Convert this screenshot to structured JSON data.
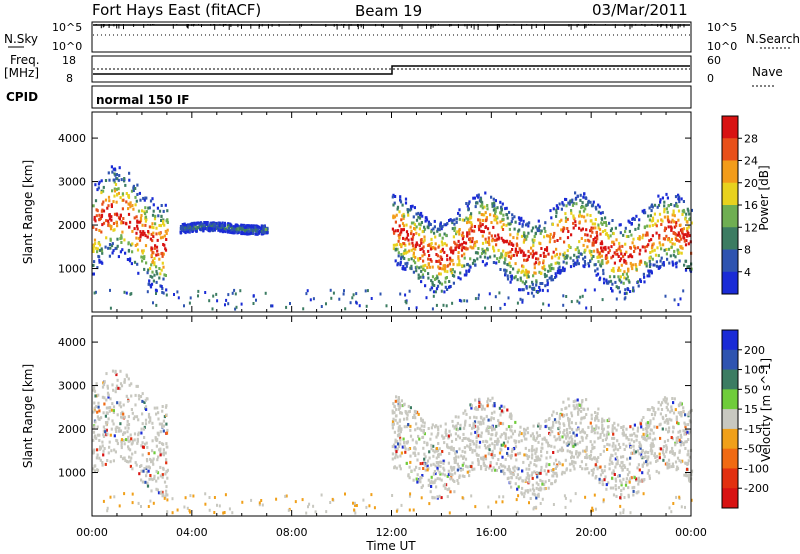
{
  "header": {
    "title": "Fort Hays East (fitACF)",
    "beam": "Beam 19",
    "date": "03/Mar/2011"
  },
  "aux_panels": {
    "nsky_label": "N.Sky",
    "nsky_ticks": [
      "10^5",
      "10^0"
    ],
    "nsearch_label": "N.Search",
    "nsearch_ticks": [
      "10^5",
      "10^0"
    ],
    "freq_label": "Freq.",
    "freq_unit": "[MHz]",
    "freq_ticks": [
      "18",
      "8"
    ],
    "nave_label": "Nave",
    "nave_ticks": [
      "60",
      "0"
    ],
    "cpid_label": "CPID",
    "cpid_value": "normal 150 IF"
  },
  "chart_data": [
    {
      "type": "heatmap",
      "parameter": "Power",
      "ylabel": "Slant Range [km]",
      "xlabel": "Time UT",
      "ylim": [
        0,
        4600
      ],
      "yticks": [
        1000,
        2000,
        3000,
        4000
      ],
      "xticks": [
        "00:00",
        "04:00",
        "08:00",
        "12:00",
        "16:00",
        "20:00",
        "00:00"
      ],
      "colorbar": {
        "label": "Power [dB]",
        "ticks": [
          "4",
          "8",
          "12",
          "16",
          "20",
          "24",
          "28"
        ],
        "colors": [
          "#1a2bd6",
          "#2f54b0",
          "#3c7c62",
          "#6fae52",
          "#e8d21e",
          "#f39c1a",
          "#e8501a",
          "#d81212"
        ]
      },
      "features": [
        {
          "time_start": "00:00",
          "time_end": "03:00",
          "range_low": 1300,
          "range_high": 3400,
          "peak_db": 28
        },
        {
          "time_start": "03:30",
          "time_end": "07:00",
          "range_low": 1900,
          "range_high": 2100,
          "peak_db": 8
        },
        {
          "time_start": "12:00",
          "time_end": "24:00",
          "range_low": 1100,
          "range_high": 2800,
          "peak_db": 28
        }
      ]
    },
    {
      "type": "heatmap",
      "parameter": "Velocity",
      "ylabel": "Slant Range [km]",
      "xlabel": "Time UT",
      "ylim": [
        0,
        4600
      ],
      "yticks": [
        1000,
        2000,
        3000,
        4000
      ],
      "xticks": [
        "00:00",
        "04:00",
        "08:00",
        "12:00",
        "16:00",
        "20:00",
        "00:00"
      ],
      "colorbar": {
        "label": "Velocity [m s^-1]",
        "ticks": [
          "200",
          "100",
          "50",
          "15",
          "-15",
          "-50",
          "-100",
          "-200"
        ],
        "colors": [
          "#1a2bd6",
          "#2f54b0",
          "#3c7c62",
          "#6fcc3a",
          "#c8c8c0",
          "#f0a01a",
          "#f06a12",
          "#e23010",
          "#d81212"
        ]
      },
      "features": [
        {
          "time_start": "00:00",
          "time_end": "03:00",
          "range_low": 1300,
          "range_high": 3400,
          "velocity": "ground scatter"
        },
        {
          "time_start": "12:00",
          "time_end": "24:00",
          "range_low": 1100,
          "range_high": 2800,
          "velocity": "ground scatter"
        }
      ]
    }
  ]
}
